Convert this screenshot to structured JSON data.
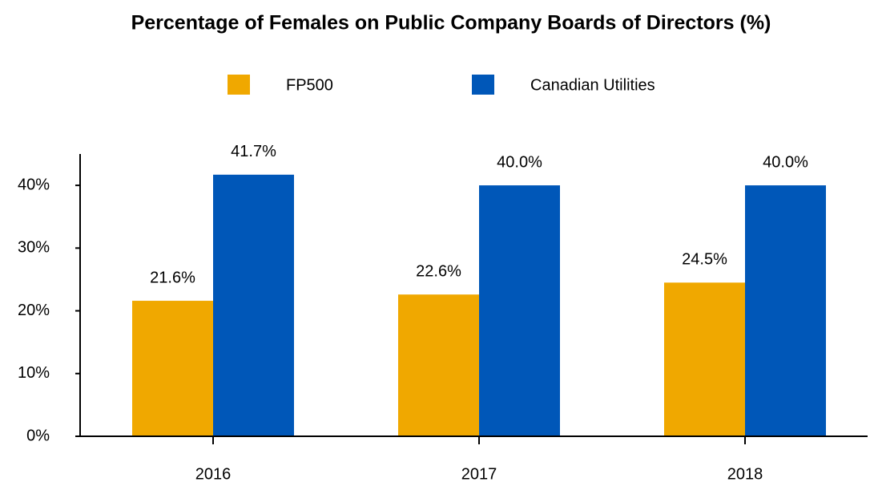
{
  "chart_data": {
    "type": "bar",
    "title": "Percentage of Females on Public Company Boards of Directors (%)",
    "categories": [
      "2016",
      "2017",
      "2018"
    ],
    "series": [
      {
        "name": "FP500",
        "color": "#f0a800",
        "values": [
          21.6,
          22.6,
          24.5
        ],
        "value_labels": [
          "21.6%",
          "22.6%",
          "24.5%"
        ]
      },
      {
        "name": "Canadian Utilities",
        "color": "#0057b8",
        "values": [
          41.7,
          40.0,
          40.0
        ],
        "value_labels": [
          "41.7%",
          "40.0%",
          "40.0%"
        ]
      }
    ],
    "ylim": [
      0,
      45
    ],
    "yticks": [
      {
        "value": 0,
        "label": "0%"
      },
      {
        "value": 10,
        "label": "10%"
      },
      {
        "value": 20,
        "label": "20%"
      },
      {
        "value": 30,
        "label": "30%"
      },
      {
        "value": 40,
        "label": "40%"
      }
    ],
    "legend": "top"
  }
}
